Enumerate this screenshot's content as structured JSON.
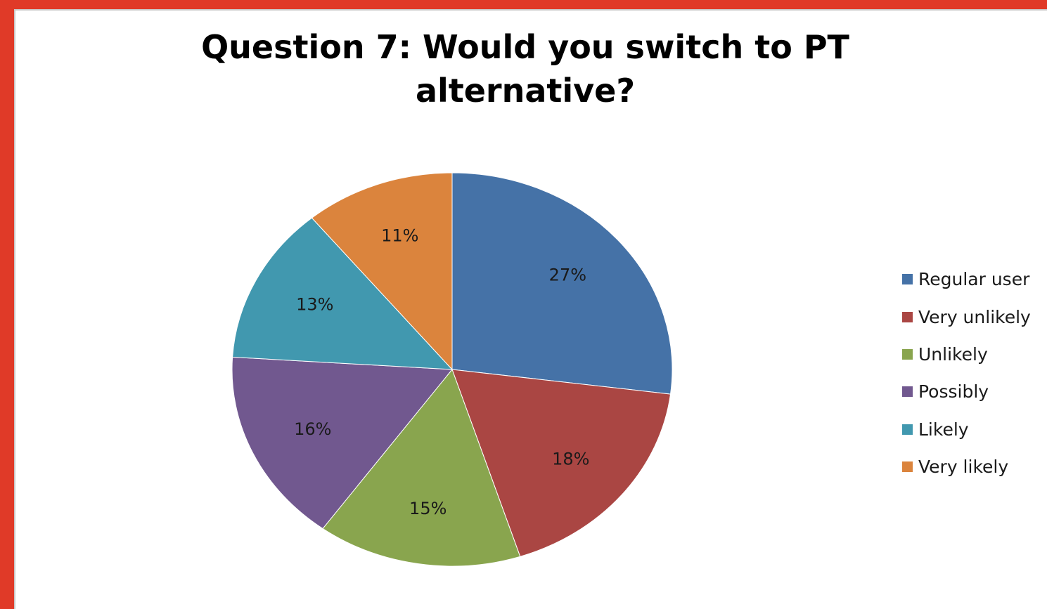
{
  "chart_data": {
    "type": "pie",
    "title": [
      "Question 7: Would you switch to PT",
      "alternative?"
    ],
    "categories": [
      "Regular user",
      "Very unlikely",
      "Unlikely",
      "Possibly",
      "Likely",
      "Very likely"
    ],
    "values": [
      27,
      18,
      15,
      16,
      13,
      11
    ],
    "labels": [
      "27%",
      "18%",
      "15%",
      "16%",
      "13%",
      "11%"
    ],
    "colors": [
      "#4572a7",
      "#aa4643",
      "#89a54e",
      "#71588f",
      "#4198af",
      "#db843d"
    ],
    "legend": "right",
    "start_angle": "12 o'clock",
    "direction": "clockwise"
  }
}
